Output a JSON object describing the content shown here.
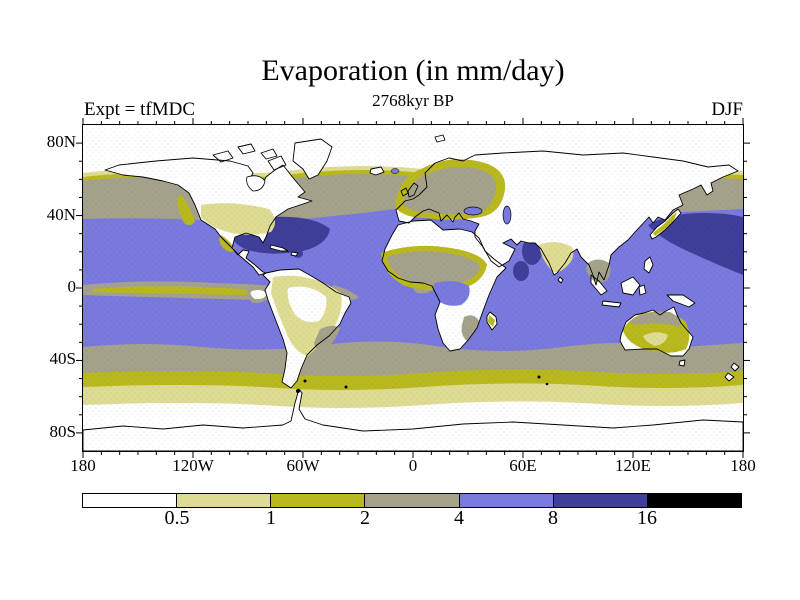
{
  "header": {
    "title": "Evaporation (in mm/day)",
    "subtitle": "2768kyr BP",
    "experiment_label": "Expt = tfMDC",
    "season_label": "DJF"
  },
  "palette": {
    "c0": "#ffffff",
    "c1": "#dedc92",
    "c2": "#b9b91f",
    "c3": "#a5a28c",
    "c4": "#7a7ade",
    "c5": "#3f3f9a",
    "c6": "#000000",
    "coastline": "#000000"
  },
  "chart_data": {
    "type": "heatmap",
    "subtype": "filled-contour world map, equirectangular lat-lon projection",
    "title": "Evaporation (in mm/day)",
    "subtitle": "2768kyr BP",
    "experiment": "Expt = tfMDC",
    "season": "DJF",
    "units": "mm/day",
    "x_axis": {
      "ticks": [
        "180",
        "120W",
        "60W",
        "0",
        "60E",
        "120E",
        "180"
      ],
      "tick_values_deg": [
        -180,
        -120,
        -60,
        0,
        60,
        120,
        180
      ],
      "minor_tick_interval_deg": 10,
      "range_deg": [
        -180,
        180
      ]
    },
    "y_axis": {
      "ticks": [
        "80N",
        "40N",
        "0",
        "40S",
        "80S"
      ],
      "tick_values_deg": [
        80,
        40,
        0,
        -40,
        -80
      ],
      "minor_tick_interval_deg": 10,
      "range_deg": [
        -90,
        90
      ]
    },
    "colorbar": {
      "boundaries": [
        "0.5",
        "1",
        "2",
        "4",
        "8",
        "16"
      ],
      "levels_mm_per_day": [
        0.5,
        1,
        2,
        4,
        8,
        16
      ],
      "segments": [
        {
          "range": "< 0.5",
          "color": "#ffffff"
        },
        {
          "range": "0.5 - 1",
          "color": "#dedc92"
        },
        {
          "range": "1 - 2",
          "color": "#b9b91f"
        },
        {
          "range": "2 - 4",
          "color": "#a5a28c"
        },
        {
          "range": "4 - 8",
          "color": "#7a7ade"
        },
        {
          "range": "8 - 16",
          "color": "#3f3f9a"
        },
        {
          "range": "> 16",
          "color": "#000000"
        }
      ]
    },
    "pattern_summary": "Blue (4-8 mm/day) covers subtropical and tropical oceans between about 38N and 33S; dark blue (8-16) patches over the Gulf Stream off the US east coast, the Kuroshio / NW Pacific east of Japan and the Arabian Sea; gray (2-4) bands over mid-latitude oceans near 40-60N and 33-46S; olive (1-2) and pale yellow (0.5-1) fringes poleward of the gray bands; white (<0.5) over most land, the Arctic, Antarctica and the Southern Ocean near the ice edge; an olive/gray low-evaporation strip lies along the eastern equatorial Pacific."
  }
}
